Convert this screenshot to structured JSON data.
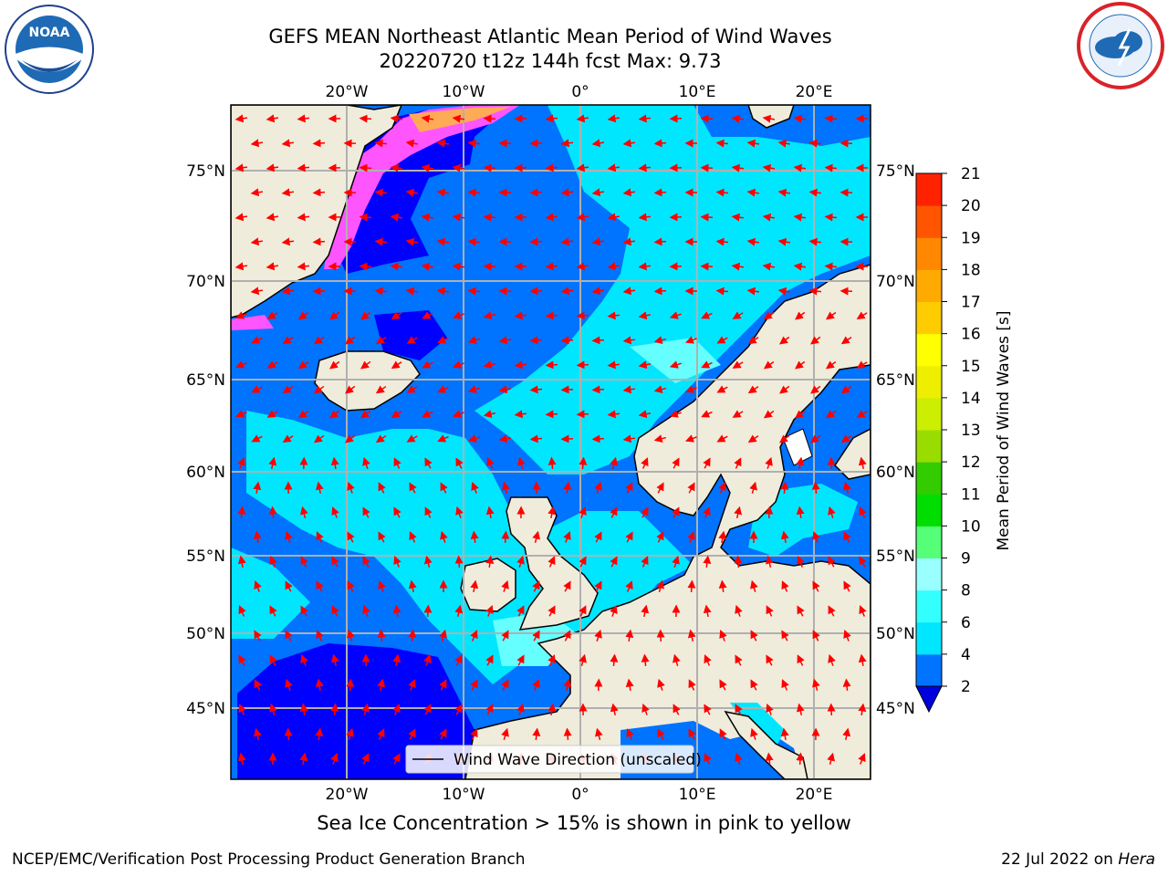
{
  "header": {
    "title_line1": "GEFS MEAN Northeast Atlantic Mean Period of Wind Waves",
    "title_line2": "20220720 t12z 144h fcst   Max: 9.73"
  },
  "logos": {
    "left": {
      "name": "NOAA",
      "icon": "noaa-logo",
      "color": "#1f6ab5"
    },
    "right": {
      "name": "NATIONAL WEATHER SERVICE",
      "icon": "nws-logo",
      "color": "#d8232a"
    }
  },
  "map": {
    "projection": "lat-lon",
    "lon_range": [
      -30,
      25
    ],
    "lat_range": [
      41,
      78
    ],
    "lon_ticks": [
      "20°W",
      "10°W",
      "0°",
      "10°E",
      "20°E"
    ],
    "lat_ticks": [
      "75°N",
      "70°N",
      "65°N",
      "60°N",
      "55°N",
      "50°N",
      "45°N"
    ],
    "legend_label": "Wind Wave Direction (unscaled)",
    "colors": {
      "land": "#efecdc",
      "ocean_deep": "#0000ff",
      "ocean_low": "#0073ff",
      "ocean_mid": "#00e6ff",
      "ocean_high": "#33ffff",
      "arrow": "#ff0000",
      "ice": "#ff55ff"
    }
  },
  "colorbar": {
    "label": "Mean Period of Wind Waves [s]",
    "ticks": [
      "2",
      "4",
      "6",
      "8",
      "9",
      "10",
      "11",
      "12",
      "13",
      "14",
      "15",
      "16",
      "17",
      "18",
      "19",
      "20",
      "21"
    ],
    "colors": [
      "#0073ff",
      "#00e6ff",
      "#33ffff",
      "#99ffff",
      "#55ff77",
      "#00dd00",
      "#33cc00",
      "#99dd00",
      "#ccee00",
      "#eeee00",
      "#ffff00",
      "#ffcc00",
      "#ffaa00",
      "#ff8800",
      "#ff5500",
      "#ff2200"
    ],
    "extend_color": "#0000dd"
  },
  "footer": {
    "note": "Sea Ice Concentration > 15% is shown in pink to yellow",
    "credit_left": "NCEP/EMC/Verification Post Processing Product Generation Branch",
    "date": "22 Jul 2022 on",
    "host": "Hera"
  }
}
